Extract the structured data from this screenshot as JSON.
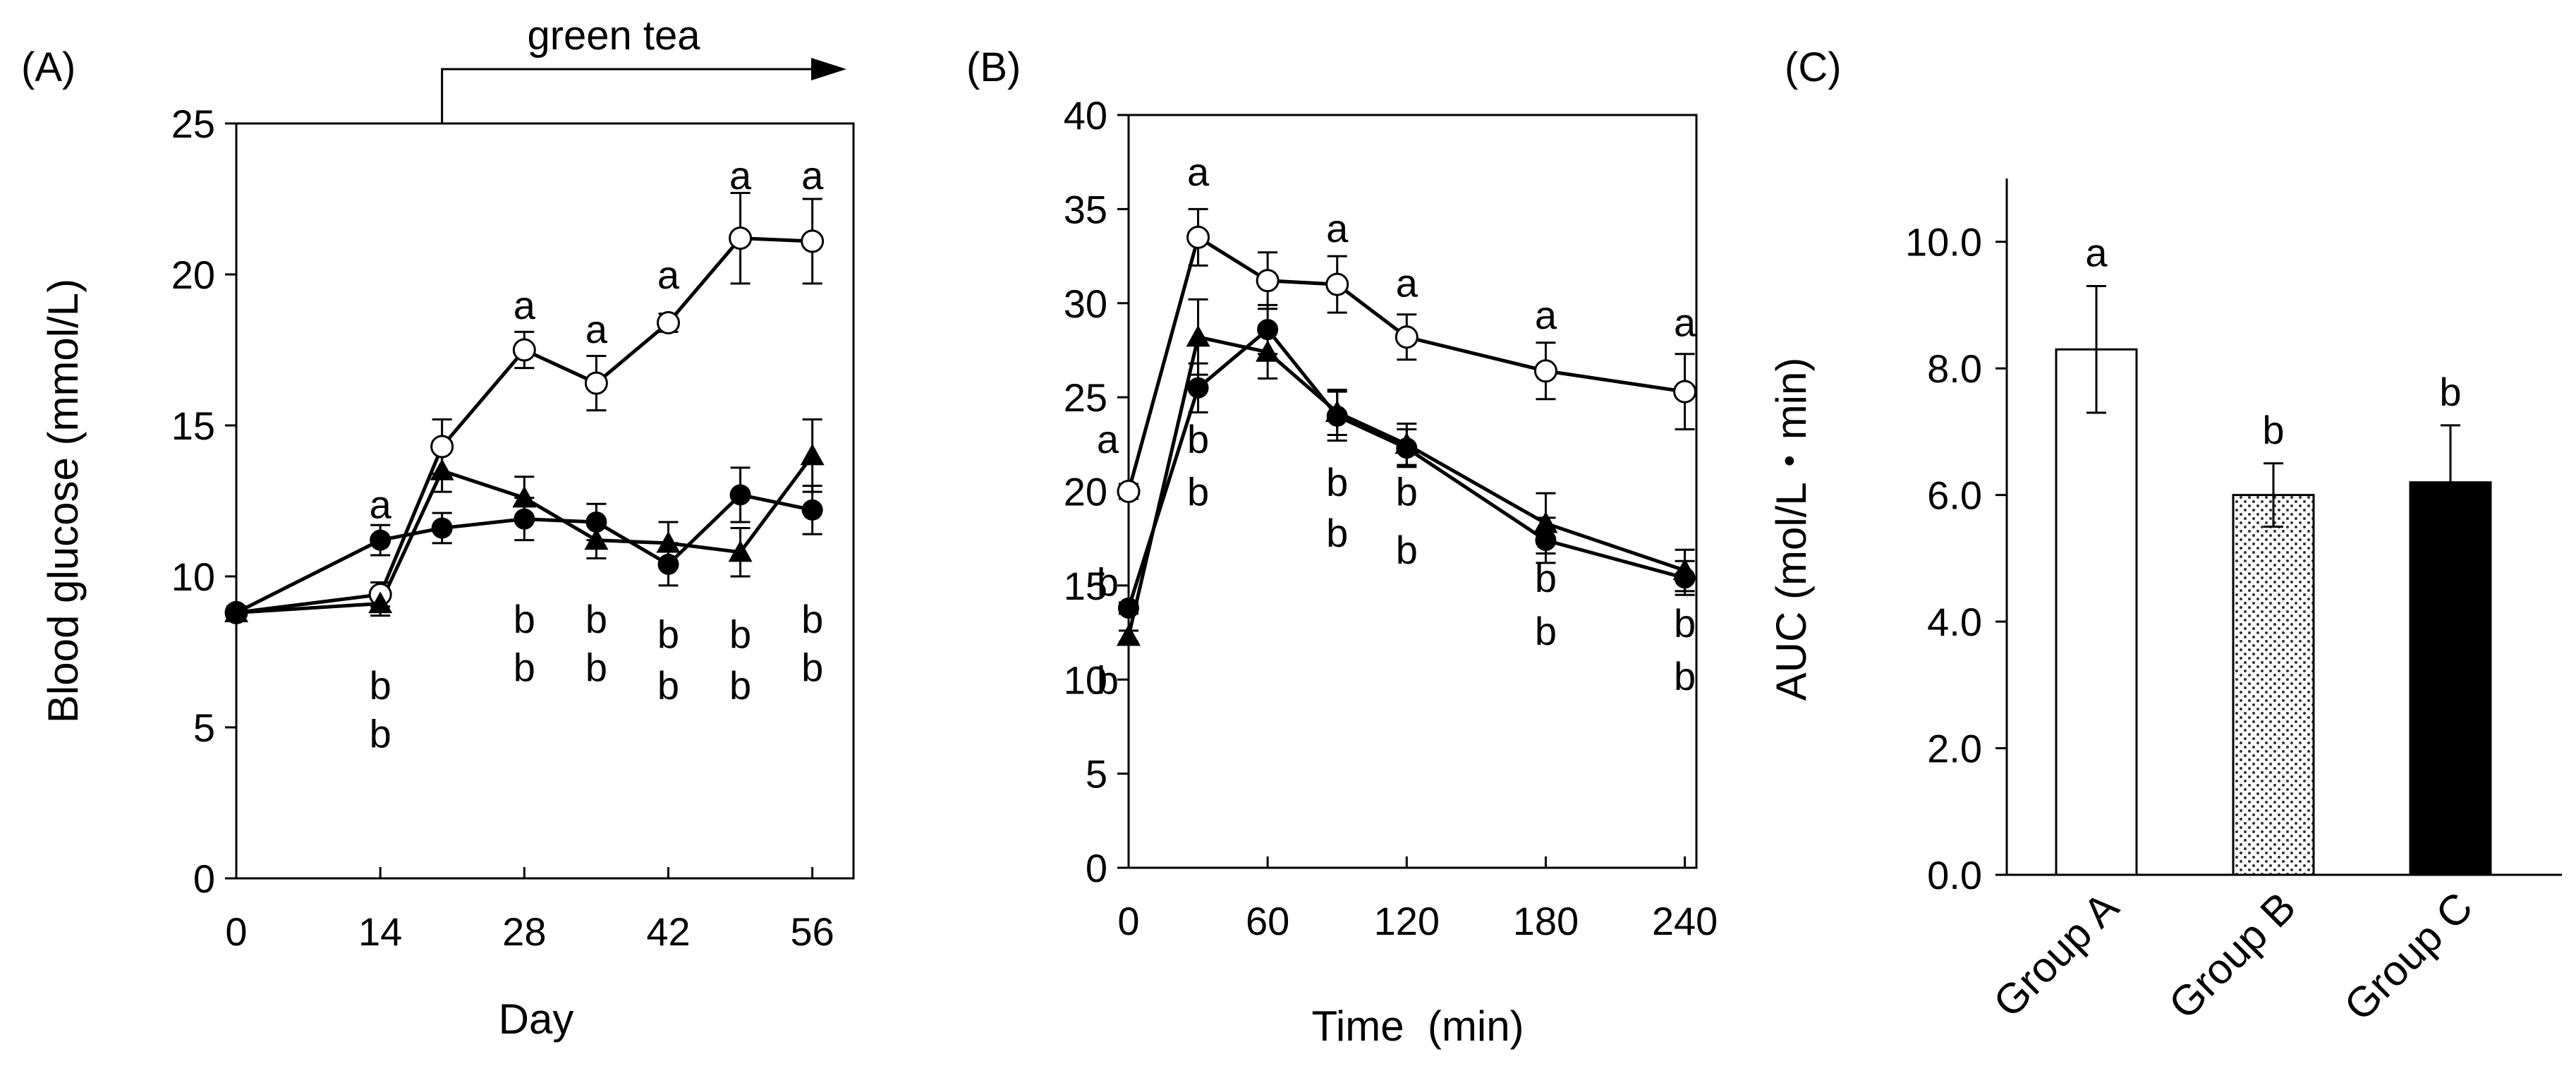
{
  "chart_data": [
    {
      "panel": "(A)",
      "type": "line",
      "xlabel": "Day",
      "ylabel": "Blood glucose (mmol/L)",
      "xlim": [
        0,
        60
      ],
      "ylim": [
        0,
        25
      ],
      "xticks": [
        0,
        14,
        28,
        42,
        56
      ],
      "yticks": [
        0,
        5,
        10,
        15,
        20,
        25
      ],
      "annotation": "green tea",
      "annotation_start_x": 20,
      "series": [
        {
          "name": "open circle",
          "marker": "open-circle",
          "x": [
            0,
            14,
            20,
            28,
            35,
            42,
            49,
            56
          ],
          "y": [
            8.8,
            9.4,
            14.3,
            17.5,
            16.4,
            18.4,
            21.2,
            21.1
          ],
          "err": [
            0.2,
            0.4,
            0.9,
            0.6,
            0.9,
            0.3,
            1.5,
            1.4
          ]
        },
        {
          "name": "filled triangle",
          "marker": "filled-triangle",
          "x": [
            0,
            14,
            20,
            28,
            35,
            42,
            49,
            56
          ],
          "y": [
            8.8,
            9.1,
            13.5,
            12.6,
            11.2,
            11.1,
            10.8,
            14.0
          ],
          "err": [
            0.2,
            0.4,
            0.7,
            0.7,
            0.6,
            0.7,
            0.8,
            1.2
          ]
        },
        {
          "name": "filled circle",
          "marker": "filled-circle",
          "x": [
            0,
            14,
            20,
            28,
            35,
            42,
            49,
            56
          ],
          "y": [
            8.8,
            11.2,
            11.6,
            11.9,
            11.8,
            10.4,
            12.7,
            12.2
          ],
          "err": [
            0.2,
            0.5,
            0.5,
            0.7,
            0.6,
            0.7,
            0.9,
            0.8
          ]
        }
      ],
      "sig_labels": [
        {
          "x": 14,
          "y": 12.4,
          "text": "a"
        },
        {
          "x": 14,
          "y": 6.4,
          "text": "b"
        },
        {
          "x": 14,
          "y": 4.8,
          "text": "b"
        },
        {
          "x": 28,
          "y": 19.0,
          "text": "a"
        },
        {
          "x": 28,
          "y": 8.6,
          "text": "b"
        },
        {
          "x": 28,
          "y": 7.0,
          "text": "b"
        },
        {
          "x": 35,
          "y": 18.2,
          "text": "a"
        },
        {
          "x": 35,
          "y": 8.6,
          "text": "b"
        },
        {
          "x": 35,
          "y": 7.0,
          "text": "b"
        },
        {
          "x": 42,
          "y": 20.0,
          "text": "a"
        },
        {
          "x": 42,
          "y": 8.1,
          "text": "b"
        },
        {
          "x": 42,
          "y": 6.4,
          "text": "b"
        },
        {
          "x": 49,
          "y": 23.3,
          "text": "a"
        },
        {
          "x": 49,
          "y": 8.1,
          "text": "b"
        },
        {
          "x": 49,
          "y": 6.4,
          "text": "b"
        },
        {
          "x": 56,
          "y": 23.3,
          "text": "a"
        },
        {
          "x": 56,
          "y": 8.6,
          "text": "b"
        },
        {
          "x": 56,
          "y": 7.0,
          "text": "b"
        }
      ]
    },
    {
      "panel": "(B)",
      "type": "line",
      "xlabel": "Time  (min)",
      "ylabel": "",
      "xlim": [
        0,
        245
      ],
      "ylim": [
        0,
        40
      ],
      "xticks": [
        0,
        60,
        120,
        180,
        240
      ],
      "yticks": [
        0,
        5,
        10,
        15,
        20,
        25,
        30,
        35,
        40
      ],
      "series": [
        {
          "name": "open circle",
          "marker": "open-circle",
          "x": [
            0,
            30,
            60,
            90,
            120,
            180,
            240
          ],
          "y": [
            20.0,
            33.5,
            31.2,
            31.0,
            28.2,
            26.4,
            25.3
          ],
          "err": [
            0.4,
            1.5,
            1.5,
            1.5,
            1.2,
            1.5,
            2.0
          ]
        },
        {
          "name": "filled triangle",
          "marker": "filled-triangle",
          "x": [
            0,
            30,
            60,
            90,
            120,
            180,
            240
          ],
          "y": [
            12.3,
            28.2,
            27.4,
            24.2,
            22.5,
            18.3,
            15.8
          ],
          "err": [
            0.3,
            2.0,
            1.4,
            1.2,
            1.1,
            1.6,
            1.1
          ]
        },
        {
          "name": "filled circle",
          "marker": "filled-circle",
          "x": [
            0,
            30,
            60,
            90,
            120,
            180,
            240
          ],
          "y": [
            13.8,
            25.5,
            28.6,
            24.0,
            22.3,
            17.4,
            15.4
          ],
          "err": [
            0.3,
            1.3,
            1.3,
            1.3,
            1.0,
            1.2,
            0.9
          ]
        }
      ],
      "sig_labels": [
        {
          "x": -9,
          "y": 22.8,
          "text": "a"
        },
        {
          "x": -9,
          "y": 15.2,
          "text": "b"
        },
        {
          "x": -9,
          "y": 10.0,
          "text": "b"
        },
        {
          "x": 30,
          "y": 37.0,
          "text": "a"
        },
        {
          "x": 30,
          "y": 22.8,
          "text": "b"
        },
        {
          "x": 30,
          "y": 20.0,
          "text": "b"
        },
        {
          "x": 90,
          "y": 34.0,
          "text": "a"
        },
        {
          "x": 90,
          "y": 20.5,
          "text": "b"
        },
        {
          "x": 90,
          "y": 17.8,
          "text": "b"
        },
        {
          "x": 120,
          "y": 31.1,
          "text": "a"
        },
        {
          "x": 120,
          "y": 20.0,
          "text": "b"
        },
        {
          "x": 120,
          "y": 16.9,
          "text": "b"
        },
        {
          "x": 180,
          "y": 29.4,
          "text": "a"
        },
        {
          "x": 180,
          "y": 15.4,
          "text": "b"
        },
        {
          "x": 180,
          "y": 12.6,
          "text": "b"
        },
        {
          "x": 240,
          "y": 29.0,
          "text": "a"
        },
        {
          "x": 240,
          "y": 13.0,
          "text": "b"
        },
        {
          "x": 240,
          "y": 10.2,
          "text": "b"
        }
      ]
    },
    {
      "panel": "(C)",
      "type": "bar",
      "xlabel": "",
      "ylabel": "AUC (mol/L・min)",
      "ylim": [
        0,
        11
      ],
      "yticks": [
        0,
        2,
        4,
        6,
        8,
        10
      ],
      "ytick_labels": [
        "0.0",
        "2.0",
        "4.0",
        "6.0",
        "8.0",
        "10.0"
      ],
      "categories": [
        "Group A",
        "Group B",
        "Group C"
      ],
      "values": [
        8.3,
        6.0,
        6.2
      ],
      "errors": [
        1.0,
        0.5,
        0.9
      ],
      "fills": [
        "white",
        "dotted",
        "black"
      ],
      "sig_labels": [
        "a",
        "b",
        "b"
      ]
    }
  ]
}
